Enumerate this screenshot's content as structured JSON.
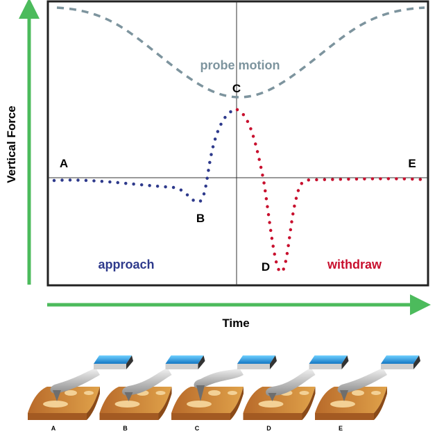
{
  "axes": {
    "y_label": "Vertical Force",
    "x_label": "Time"
  },
  "points": {
    "a": "A",
    "b": "B",
    "c": "C",
    "d": "D",
    "e": "E"
  },
  "curves": {
    "probe": "probe motion",
    "approach": "approach",
    "withdraw": "withdraw"
  },
  "panels": [
    "A",
    "B",
    "C",
    "D",
    "E"
  ],
  "colors": {
    "arrow": "#4cbb5c",
    "approach": "#2e3a8c",
    "withdraw": "#c8102e",
    "probe": "#7d949e",
    "frame": "#222222"
  }
}
